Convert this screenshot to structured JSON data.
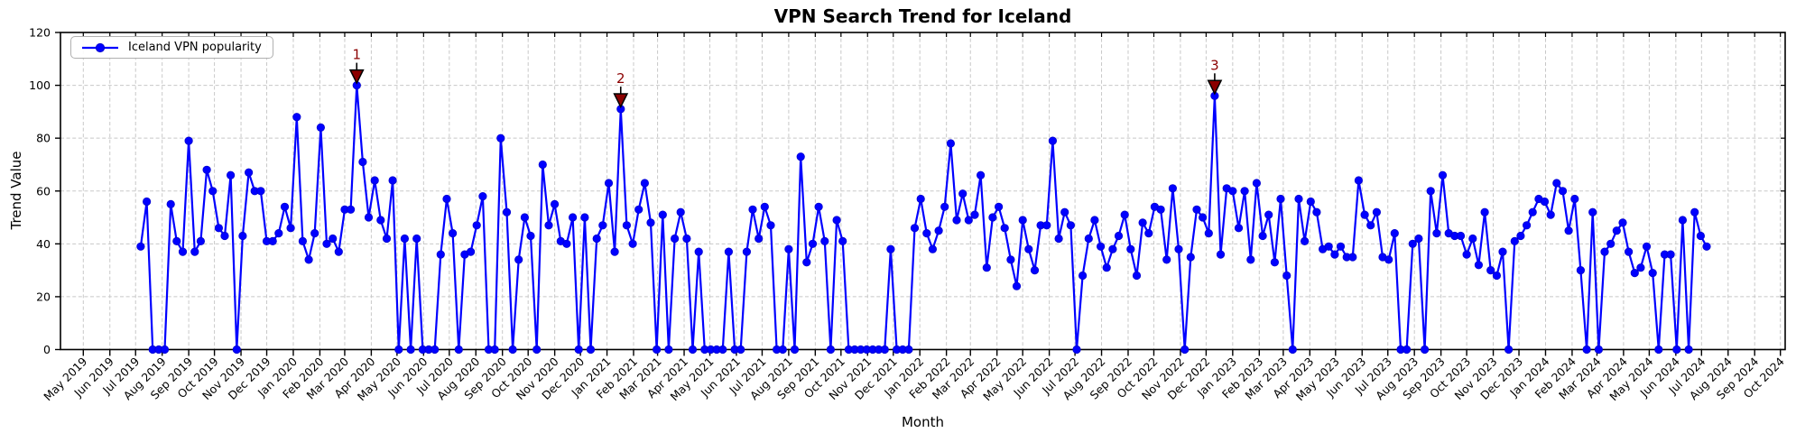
{
  "chart_data": {
    "type": "line",
    "title": "VPN Search Trend for Iceland",
    "xlabel": "Month",
    "ylabel": "Trend Value",
    "ylim": [
      0,
      120
    ],
    "yticks": [
      0,
      20,
      40,
      60,
      80,
      100,
      120
    ],
    "grid": true,
    "legend_position": "upper left",
    "x_tick_labels": [
      "May 2019",
      "Jun 2019",
      "Jul 2019",
      "Aug 2019",
      "Sep 2019",
      "Oct 2019",
      "Nov 2019",
      "Dec 2019",
      "Jan 2020",
      "Feb 2020",
      "Mar 2020",
      "Apr 2020",
      "May 2020",
      "Jun 2020",
      "Jul 2020",
      "Aug 2020",
      "Sep 2020",
      "Oct 2020",
      "Nov 2020",
      "Dec 2020",
      "Jan 2021",
      "Feb 2021",
      "Mar 2021",
      "Apr 2021",
      "May 2021",
      "Jun 2021",
      "Jul 2021",
      "Aug 2021",
      "Sep 2021",
      "Oct 2021",
      "Nov 2021",
      "Dec 2021",
      "Jan 2022",
      "Feb 2022",
      "Mar 2022",
      "Apr 2022",
      "May 2022",
      "Jun 2022",
      "Jul 2022",
      "Aug 2022",
      "Sep 2022",
      "Oct 2022",
      "Nov 2022",
      "Dec 2022",
      "Jan 2023",
      "Feb 2023",
      "Mar 2023",
      "Apr 2023",
      "May 2023",
      "Jun 2023",
      "Jul 2023",
      "Aug 2023",
      "Sep 2023",
      "Oct 2023",
      "Nov 2023",
      "Dec 2023",
      "Jan 2024",
      "Feb 2024",
      "Mar 2024",
      "Apr 2024",
      "May 2024",
      "Jun 2024",
      "Jul 2024",
      "Aug 2024",
      "Sep 2024",
      "Oct 2024"
    ],
    "series": [
      {
        "name": "Iceland VPN popularity",
        "color": "#0000ff",
        "start_date": "2019-07-07",
        "cadence_days": 7,
        "values": [
          39,
          56,
          0,
          0,
          0,
          55,
          41,
          37,
          79,
          37,
          41,
          68,
          60,
          46,
          43,
          66,
          0,
          43,
          67,
          60,
          60,
          41,
          41,
          44,
          54,
          46,
          88,
          41,
          34,
          44,
          84,
          40,
          42,
          37,
          53,
          53,
          100,
          71,
          50,
          64,
          49,
          42,
          64,
          0,
          42,
          0,
          42,
          0,
          0,
          0,
          36,
          57,
          44,
          0,
          36,
          37,
          47,
          58,
          0,
          0,
          80,
          52,
          0,
          34,
          50,
          43,
          0,
          70,
          47,
          55,
          41,
          40,
          50,
          0,
          50,
          0,
          42,
          47,
          63,
          37,
          91,
          47,
          40,
          53,
          63,
          48,
          0,
          51,
          0,
          42,
          52,
          42,
          0,
          37,
          0,
          0,
          0,
          0,
          37,
          0,
          0,
          37,
          53,
          42,
          54,
          47,
          0,
          0,
          38,
          0,
          73,
          33,
          40,
          54,
          41,
          0,
          49,
          41,
          0,
          0,
          0,
          0,
          0,
          0,
          0,
          38,
          0,
          0,
          0,
          46,
          57,
          44,
          38,
          45,
          54,
          78,
          49,
          59,
          49,
          51,
          66,
          31,
          50,
          54,
          46,
          34,
          24,
          49,
          38,
          30,
          47,
          47,
          79,
          42,
          52,
          47,
          0,
          28,
          42,
          49,
          39,
          31,
          38,
          43,
          51,
          38,
          28,
          48,
          44,
          54,
          53,
          34,
          61,
          38,
          0,
          35,
          53,
          50,
          44,
          96,
          36,
          61,
          60,
          46,
          60,
          34,
          63,
          43,
          51,
          33,
          57,
          28,
          0,
          57,
          41,
          56,
          52,
          38,
          39,
          36,
          39,
          35,
          35,
          64,
          51,
          47,
          52,
          35,
          34,
          44,
          0,
          0,
          40,
          42,
          0,
          60,
          44,
          66,
          44,
          43,
          43,
          36,
          42,
          32,
          52,
          30,
          28,
          37,
          0,
          41,
          43,
          47,
          52,
          57,
          56,
          51,
          63,
          60,
          45,
          57,
          30,
          0,
          52,
          0,
          37,
          40,
          45,
          48,
          37,
          29,
          31,
          39,
          29,
          0,
          36,
          36,
          0,
          49,
          0,
          52,
          43,
          39
        ]
      }
    ],
    "annotations": [
      {
        "label": "1",
        "point_index": 36,
        "value": 100
      },
      {
        "label": "2",
        "point_index": 80,
        "value": 91
      },
      {
        "label": "3",
        "point_index": 179,
        "value": 96
      }
    ],
    "annotation_color": "#8b0000",
    "line_color": "#0000ff",
    "grid_color": "#c8c8c8"
  }
}
